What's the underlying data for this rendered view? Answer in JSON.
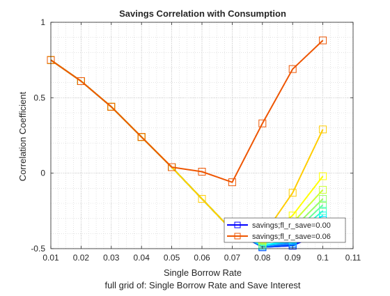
{
  "chart_data": {
    "type": "line",
    "title": "Savings Correlation with Consumption",
    "xlabel": "Single Borrow Rate",
    "ylabel": "Correlation Coefficient",
    "caption": "full grid of: Single Borrow Rate and Save Interest",
    "xlim": [
      0.01,
      0.11
    ],
    "ylim": [
      -0.5,
      1
    ],
    "xticks": [
      0.01,
      0.02,
      0.03,
      0.04,
      0.05,
      0.06,
      0.07,
      0.08,
      0.09,
      0.1,
      0.11
    ],
    "xtick_labels": [
      "0.01",
      "0.02",
      "0.03",
      "0.04",
      "0.05",
      "0.06",
      "0.07",
      "0.08",
      "0.09",
      "0.1",
      "0.11"
    ],
    "yticks": [
      -0.5,
      0,
      0.5,
      1
    ],
    "ytick_labels": [
      "-0.5",
      "0",
      "0.5",
      "1"
    ],
    "grid": true,
    "minor_grid": true,
    "legend_position": "bottom-right",
    "x": [
      0.01,
      0.02,
      0.03,
      0.04,
      0.05,
      0.06,
      0.07,
      0.08,
      0.09,
      0.1
    ],
    "series": [
      {
        "name": "savings;fl_r_save=0.00",
        "color": "#0000ff",
        "values": [
          0.75,
          0.61,
          0.44,
          0.24,
          0.04,
          -0.17,
          -0.38,
          -0.49,
          -0.48,
          -0.39
        ]
      },
      {
        "color": "#0033ff",
        "values": [
          0.75,
          0.61,
          0.44,
          0.24,
          0.04,
          -0.17,
          -0.38,
          -0.49,
          -0.48,
          -0.37
        ]
      },
      {
        "color": "#0066ff",
        "values": [
          0.75,
          0.61,
          0.44,
          0.24,
          0.04,
          -0.17,
          -0.38,
          -0.49,
          -0.47,
          -0.35
        ]
      },
      {
        "color": "#0099ff",
        "values": [
          0.75,
          0.61,
          0.44,
          0.24,
          0.04,
          -0.17,
          -0.38,
          -0.48,
          -0.46,
          -0.33
        ]
      },
      {
        "color": "#00ccff",
        "values": [
          0.75,
          0.61,
          0.44,
          0.24,
          0.04,
          -0.17,
          -0.38,
          -0.48,
          -0.45,
          -0.31
        ]
      },
      {
        "color": "#00ffff",
        "values": [
          0.75,
          0.61,
          0.44,
          0.24,
          0.04,
          -0.17,
          -0.38,
          -0.48,
          -0.44,
          -0.28
        ]
      },
      {
        "color": "#33ffcc",
        "values": [
          0.75,
          0.61,
          0.44,
          0.24,
          0.04,
          -0.17,
          -0.38,
          -0.47,
          -0.42,
          -0.25
        ]
      },
      {
        "color": "#66ff99",
        "values": [
          0.75,
          0.61,
          0.44,
          0.24,
          0.04,
          -0.17,
          -0.38,
          -0.47,
          -0.4,
          -0.21
        ]
      },
      {
        "color": "#99ff66",
        "values": [
          0.75,
          0.61,
          0.44,
          0.24,
          0.04,
          -0.17,
          -0.38,
          -0.46,
          -0.37,
          -0.17
        ]
      },
      {
        "color": "#ccff33",
        "values": [
          0.75,
          0.61,
          0.44,
          0.24,
          0.04,
          -0.17,
          -0.38,
          -0.45,
          -0.33,
          -0.11
        ]
      },
      {
        "color": "#ffff00",
        "values": [
          0.75,
          0.61,
          0.44,
          0.24,
          0.04,
          -0.17,
          -0.38,
          -0.44,
          -0.28,
          -0.02
        ]
      },
      {
        "color": "#ffcc00",
        "values": [
          0.75,
          0.61,
          0.44,
          0.24,
          0.04,
          -0.17,
          -0.38,
          -0.42,
          -0.13,
          0.29
        ]
      },
      {
        "name": "savings;fl_r_save=0.06",
        "color": "#ee5500",
        "values": [
          0.75,
          0.61,
          0.44,
          0.24,
          0.04,
          0.01,
          -0.06,
          0.33,
          0.69,
          0.88
        ]
      }
    ]
  }
}
